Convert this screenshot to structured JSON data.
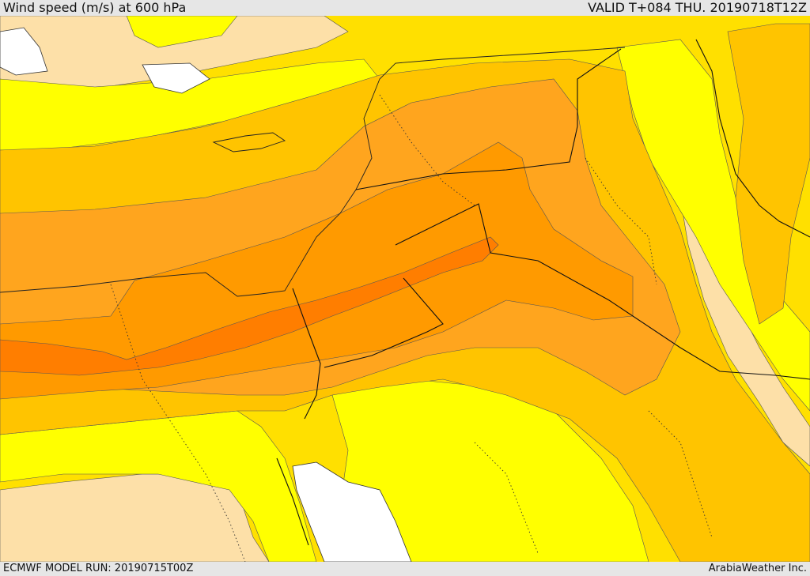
{
  "header": {
    "title": "Wind speed (m/s) at 600 hPa",
    "valid_time": "VALID T+084 THU. 20190718T12Z"
  },
  "footer": {
    "model_run": "ECMWF MODEL RUN: 20190715T00Z",
    "credit": "ArabiaWeather Inc."
  },
  "map": {
    "variable": "wind speed",
    "unit": "m/s",
    "level_hpa": 600,
    "colors": {
      "lightest": "#fde0a8",
      "yellow": "#ffff00",
      "gold": "#ffe000",
      "amber": "#ffc400",
      "orange_light": "#ffa51e",
      "orange_mid": "#ff9a00",
      "orange_dark": "#ff7e00",
      "no_data": "#ffffff",
      "border_line": "#000000"
    }
  }
}
